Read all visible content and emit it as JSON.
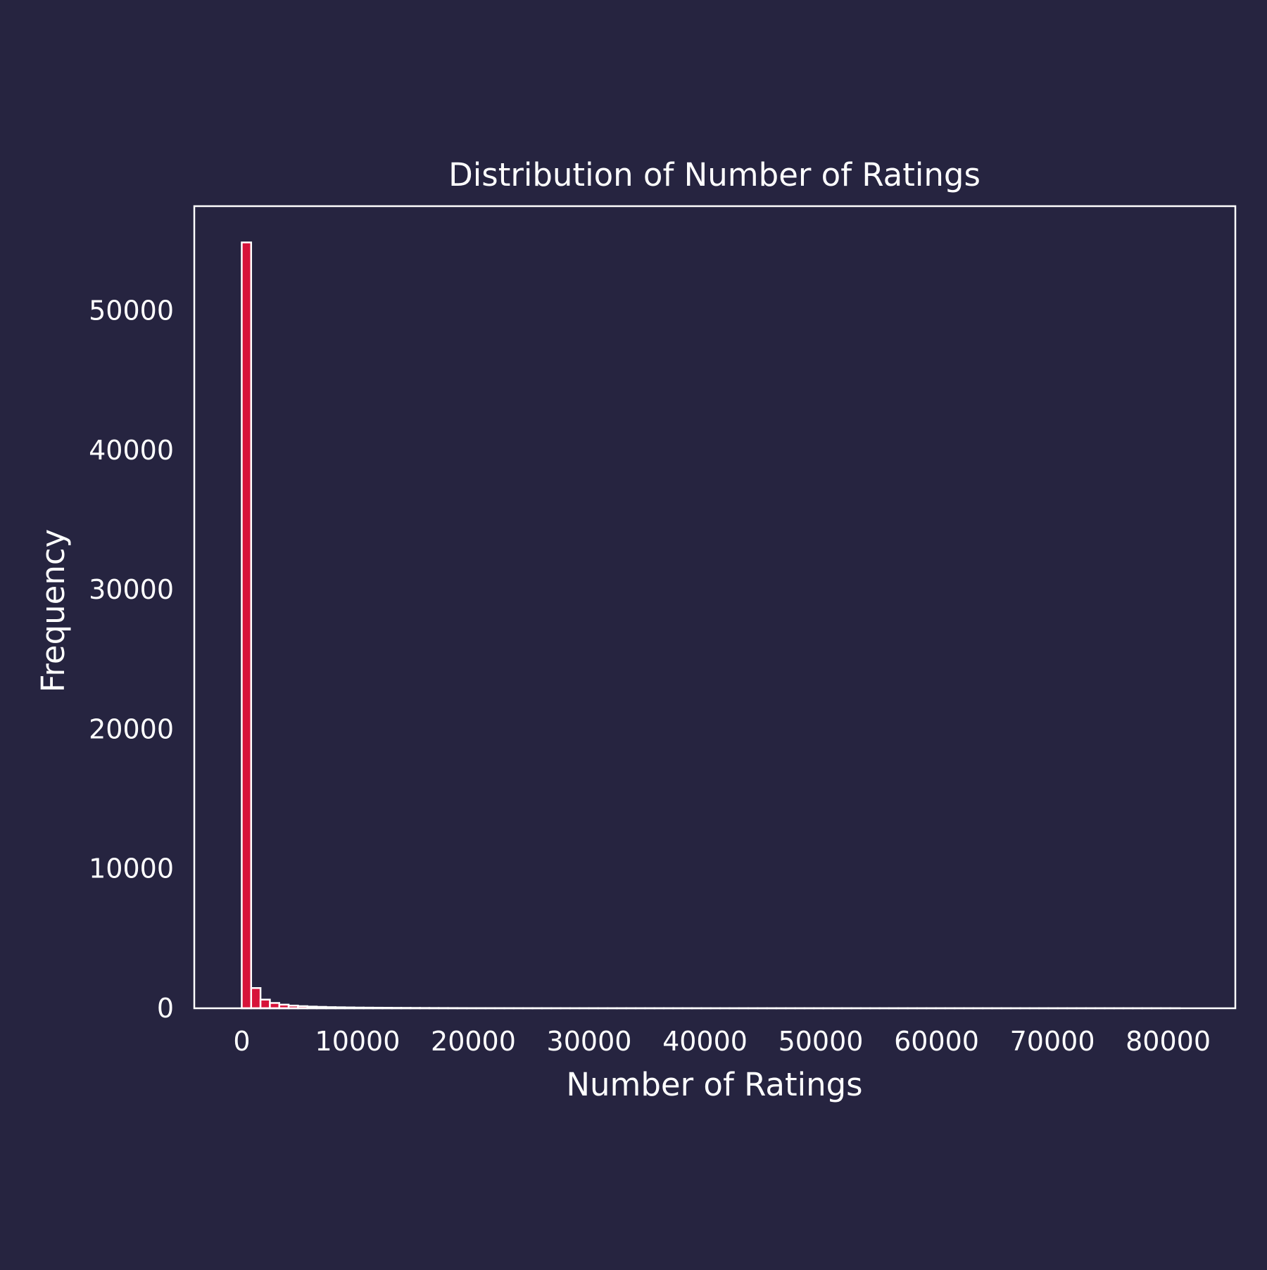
{
  "colors": {
    "background": "#262440",
    "bar_fill": "#d7133a",
    "bar_edge": "#ffffff",
    "axis": "#ffffff",
    "text": "#ffffff"
  },
  "chart_data": {
    "type": "bar",
    "title": "Distribution of Number of Ratings",
    "xlabel": "Number of Ratings",
    "ylabel": "Frequency",
    "grid": false,
    "legend": "none",
    "xlim": [
      -4100,
      85800
    ],
    "ylim": [
      0,
      57500
    ],
    "xticks": [
      0,
      10000,
      20000,
      30000,
      40000,
      50000,
      60000,
      70000,
      80000
    ],
    "yticks": [
      0,
      10000,
      20000,
      30000,
      40000,
      50000
    ],
    "bin_width": 810,
    "bin_start": 0,
    "values": [
      54900,
      1450,
      620,
      380,
      260,
      190,
      150,
      120,
      100,
      80,
      70,
      60,
      50,
      45,
      40,
      35,
      30,
      28,
      25,
      22,
      20,
      18,
      16,
      14,
      12,
      11,
      10,
      9,
      8,
      7,
      6,
      6,
      5,
      5,
      5,
      4,
      4,
      4,
      3,
      3,
      3,
      3,
      2,
      2,
      2,
      2,
      2,
      2,
      1,
      1,
      1,
      1,
      1,
      1,
      1,
      1,
      1,
      1,
      1,
      1,
      1,
      1,
      1,
      1,
      1,
      1,
      1,
      1,
      1,
      1,
      1,
      1,
      1,
      1,
      1,
      1,
      1,
      1,
      1,
      1,
      1,
      1,
      1,
      1,
      1,
      1,
      1,
      1,
      1,
      1,
      1,
      1,
      1,
      1,
      1,
      1,
      1,
      1,
      1,
      1
    ]
  }
}
